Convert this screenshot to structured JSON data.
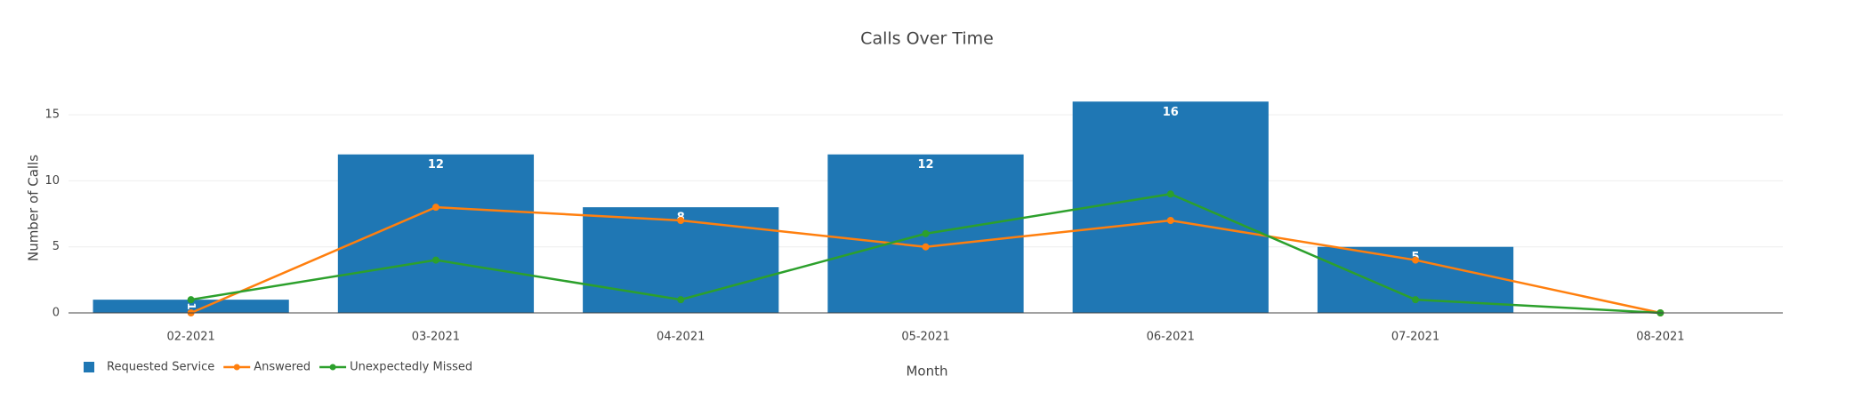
{
  "chart_data": {
    "type": "bar+line",
    "title": "Calls Over Time",
    "x_label": "Month",
    "y_label": "Number of Calls",
    "categories": [
      "02-2021",
      "03-2021",
      "04-2021",
      "05-2021",
      "06-2021",
      "07-2021",
      "08-2021"
    ],
    "series": [
      {
        "name": "Requested Service",
        "type": "bar",
        "color": "#1f77b4",
        "values": [
          1,
          12,
          8,
          12,
          16,
          5,
          null
        ]
      },
      {
        "name": "Answered",
        "type": "line",
        "color": "#ff7f0e",
        "values": [
          0,
          8,
          7,
          5,
          7,
          4,
          0
        ]
      },
      {
        "name": "Unexpectedly Missed",
        "type": "line",
        "color": "#2ca02c",
        "values": [
          1,
          4,
          1,
          6,
          9,
          1,
          0
        ]
      }
    ],
    "ylim": [
      0,
      17.5
    ],
    "yticks": [
      0,
      5,
      10,
      15
    ],
    "grid": true,
    "legend": "bottom-left"
  }
}
